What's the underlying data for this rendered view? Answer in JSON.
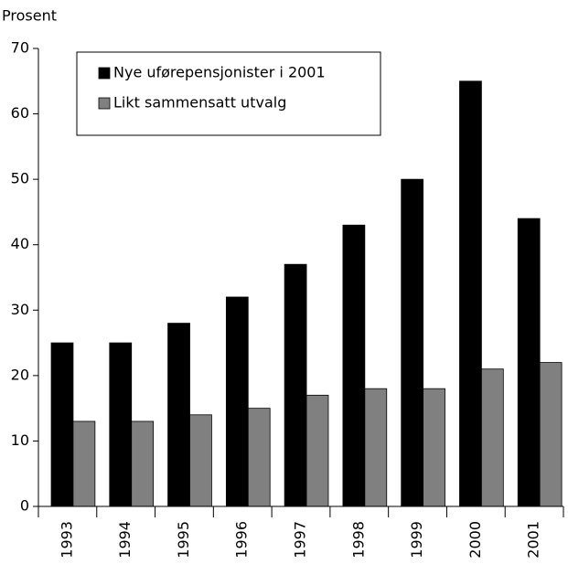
{
  "chart_data": {
    "type": "bar",
    "y_label": "Prosent",
    "categories": [
      "1993",
      "1994",
      "1995",
      "1996",
      "1997",
      "1998",
      "1999",
      "2000",
      "2001"
    ],
    "series": [
      {
        "name": "Nye uførepensjonister i 2001",
        "color": "#000000",
        "values": [
          25,
          25,
          28,
          32,
          37,
          43,
          50,
          65,
          44
        ]
      },
      {
        "name": "Likt sammensatt utvalg",
        "color": "#808080",
        "values": [
          13,
          13,
          14,
          15,
          17,
          18,
          18,
          21,
          22
        ]
      }
    ],
    "ylim": [
      0,
      70
    ],
    "yticks": [
      0,
      10,
      20,
      30,
      40,
      50,
      60,
      70
    ],
    "grid": false,
    "legend": "upper left"
  }
}
